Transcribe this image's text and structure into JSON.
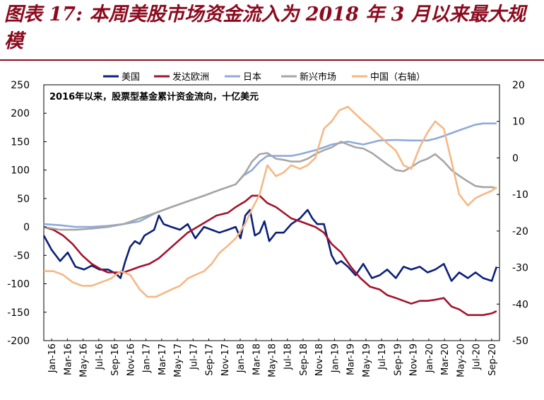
{
  "figure": {
    "title": "图表 17:  本周美股市场资金流入为 2018 年 3 月以来最大规模"
  },
  "chart_data": {
    "type": "line",
    "annotation": "2016年以来，股票型基金累计资金流向，十亿美元",
    "y_left": {
      "min": -200,
      "max": 250,
      "ticks": [
        250,
        200,
        150,
        100,
        50,
        0,
        -50,
        -100,
        -150,
        -200
      ]
    },
    "y_right": {
      "min": -50,
      "max": 20,
      "ticks": [
        20,
        10,
        0,
        -10,
        -20,
        -30,
        -40,
        -50
      ]
    },
    "x_range": [
      2016.0,
      2020.75
    ],
    "x_tick_labels": [
      "Jan-16",
      "Mar-16",
      "May-16",
      "Jul-16",
      "Sep-16",
      "Nov-16",
      "Jan-17",
      "Mar-17",
      "May-17",
      "Jul-17",
      "Sep-17",
      "Nov-17",
      "Jan-18",
      "Mar-18",
      "May-18",
      "Jul-18",
      "Sep-18",
      "Nov-18",
      "Jan-19",
      "Mar-19",
      "May-19",
      "Jul-19",
      "Sep-19",
      "Nov-19",
      "Jan-20",
      "Mar-20",
      "May-20",
      "Jul-20",
      "Sep-20"
    ],
    "series": [
      {
        "name": "美国",
        "color": "#0B1F7A",
        "axis": "left",
        "points": [
          [
            2016.0,
            -15
          ],
          [
            2016.08,
            -40
          ],
          [
            2016.17,
            -60
          ],
          [
            2016.25,
            -45
          ],
          [
            2016.33,
            -70
          ],
          [
            2016.42,
            -75
          ],
          [
            2016.5,
            -68
          ],
          [
            2016.58,
            -75
          ],
          [
            2016.67,
            -75
          ],
          [
            2016.75,
            -82
          ],
          [
            2016.8,
            -90
          ],
          [
            2016.85,
            -60
          ],
          [
            2016.9,
            -35
          ],
          [
            2016.95,
            -25
          ],
          [
            2017.0,
            -30
          ],
          [
            2017.05,
            -15
          ],
          [
            2017.1,
            -10
          ],
          [
            2017.15,
            -5
          ],
          [
            2017.2,
            20
          ],
          [
            2017.25,
            5
          ],
          [
            2017.33,
            0
          ],
          [
            2017.42,
            -5
          ],
          [
            2017.5,
            5
          ],
          [
            2017.58,
            -20
          ],
          [
            2017.67,
            0
          ],
          [
            2017.75,
            -5
          ],
          [
            2017.83,
            -10
          ],
          [
            2017.92,
            -5
          ],
          [
            2018.0,
            0
          ],
          [
            2018.05,
            -20
          ],
          [
            2018.1,
            20
          ],
          [
            2018.15,
            30
          ],
          [
            2018.2,
            -15
          ],
          [
            2018.25,
            -10
          ],
          [
            2018.3,
            10
          ],
          [
            2018.35,
            -25
          ],
          [
            2018.42,
            -10
          ],
          [
            2018.5,
            -10
          ],
          [
            2018.58,
            5
          ],
          [
            2018.67,
            15
          ],
          [
            2018.75,
            30
          ],
          [
            2018.8,
            15
          ],
          [
            2018.85,
            5
          ],
          [
            2018.92,
            5
          ],
          [
            2019.0,
            -50
          ],
          [
            2019.05,
            -65
          ],
          [
            2019.1,
            -60
          ],
          [
            2019.17,
            -70
          ],
          [
            2019.25,
            -85
          ],
          [
            2019.33,
            -65
          ],
          [
            2019.42,
            -90
          ],
          [
            2019.5,
            -85
          ],
          [
            2019.58,
            -75
          ],
          [
            2019.67,
            -90
          ],
          [
            2019.75,
            -70
          ],
          [
            2019.83,
            -75
          ],
          [
            2019.92,
            -70
          ],
          [
            2020.0,
            -80
          ],
          [
            2020.08,
            -75
          ],
          [
            2020.17,
            -65
          ],
          [
            2020.25,
            -95
          ],
          [
            2020.33,
            -80
          ],
          [
            2020.42,
            -90
          ],
          [
            2020.5,
            -80
          ],
          [
            2020.58,
            -90
          ],
          [
            2020.67,
            -95
          ],
          [
            2020.72,
            -70
          ]
        ]
      },
      {
        "name": "发达欧洲",
        "color": "#A3122C",
        "axis": "left",
        "points": [
          [
            2016.0,
            0
          ],
          [
            2016.1,
            -5
          ],
          [
            2016.2,
            -15
          ],
          [
            2016.3,
            -30
          ],
          [
            2016.4,
            -50
          ],
          [
            2016.5,
            -65
          ],
          [
            2016.6,
            -75
          ],
          [
            2016.67,
            -80
          ],
          [
            2016.75,
            -80
          ],
          [
            2016.83,
            -80
          ],
          [
            2016.92,
            -75
          ],
          [
            2017.0,
            -70
          ],
          [
            2017.1,
            -65
          ],
          [
            2017.2,
            -55
          ],
          [
            2017.3,
            -40
          ],
          [
            2017.4,
            -25
          ],
          [
            2017.5,
            -10
          ],
          [
            2017.6,
            0
          ],
          [
            2017.7,
            10
          ],
          [
            2017.8,
            20
          ],
          [
            2017.92,
            25
          ],
          [
            2018.0,
            35
          ],
          [
            2018.1,
            45
          ],
          [
            2018.17,
            55
          ],
          [
            2018.25,
            55
          ],
          [
            2018.33,
            42
          ],
          [
            2018.42,
            35
          ],
          [
            2018.5,
            25
          ],
          [
            2018.58,
            15
          ],
          [
            2018.67,
            10
          ],
          [
            2018.75,
            5
          ],
          [
            2018.83,
            0
          ],
          [
            2018.92,
            -10
          ],
          [
            2019.0,
            -30
          ],
          [
            2019.1,
            -45
          ],
          [
            2019.2,
            -70
          ],
          [
            2019.3,
            -90
          ],
          [
            2019.4,
            -105
          ],
          [
            2019.5,
            -110
          ],
          [
            2019.58,
            -120
          ],
          [
            2019.67,
            -125
          ],
          [
            2019.75,
            -130
          ],
          [
            2019.83,
            -135
          ],
          [
            2019.92,
            -130
          ],
          [
            2020.0,
            -130
          ],
          [
            2020.08,
            -128
          ],
          [
            2020.17,
            -125
          ],
          [
            2020.25,
            -140
          ],
          [
            2020.33,
            -145
          ],
          [
            2020.42,
            -155
          ],
          [
            2020.5,
            -155
          ],
          [
            2020.58,
            -155
          ],
          [
            2020.67,
            -152
          ],
          [
            2020.72,
            -148
          ]
        ]
      },
      {
        "name": "日本",
        "color": "#8EAADB",
        "axis": "left",
        "points": [
          [
            2016.0,
            5
          ],
          [
            2016.17,
            3
          ],
          [
            2016.33,
            0
          ],
          [
            2016.5,
            0
          ],
          [
            2016.67,
            2
          ],
          [
            2016.83,
            5
          ],
          [
            2017.0,
            10
          ],
          [
            2017.17,
            25
          ],
          [
            2017.33,
            35
          ],
          [
            2017.5,
            45
          ],
          [
            2017.67,
            55
          ],
          [
            2017.83,
            65
          ],
          [
            2018.0,
            75
          ],
          [
            2018.08,
            90
          ],
          [
            2018.17,
            100
          ],
          [
            2018.25,
            115
          ],
          [
            2018.33,
            125
          ],
          [
            2018.42,
            125
          ],
          [
            2018.5,
            125
          ],
          [
            2018.58,
            125
          ],
          [
            2018.67,
            128
          ],
          [
            2018.83,
            135
          ],
          [
            2018.92,
            140
          ],
          [
            2019.0,
            145
          ],
          [
            2019.17,
            150
          ],
          [
            2019.33,
            145
          ],
          [
            2019.5,
            152
          ],
          [
            2019.67,
            153
          ],
          [
            2019.83,
            152
          ],
          [
            2020.0,
            152
          ],
          [
            2020.08,
            155
          ],
          [
            2020.17,
            160
          ],
          [
            2020.25,
            165
          ],
          [
            2020.33,
            170
          ],
          [
            2020.5,
            180
          ],
          [
            2020.58,
            182
          ],
          [
            2020.72,
            182
          ]
        ]
      },
      {
        "name": "新兴市场",
        "color": "#A6A6A6",
        "axis": "left",
        "points": [
          [
            2016.0,
            0
          ],
          [
            2016.17,
            -5
          ],
          [
            2016.33,
            -5
          ],
          [
            2016.5,
            -3
          ],
          [
            2016.67,
            0
          ],
          [
            2016.83,
            5
          ],
          [
            2017.0,
            15
          ],
          [
            2017.17,
            25
          ],
          [
            2017.33,
            35
          ],
          [
            2017.5,
            45
          ],
          [
            2017.67,
            55
          ],
          [
            2017.83,
            65
          ],
          [
            2018.0,
            75
          ],
          [
            2018.1,
            95
          ],
          [
            2018.17,
            115
          ],
          [
            2018.25,
            128
          ],
          [
            2018.33,
            130
          ],
          [
            2018.42,
            120
          ],
          [
            2018.5,
            118
          ],
          [
            2018.58,
            115
          ],
          [
            2018.67,
            115
          ],
          [
            2018.75,
            120
          ],
          [
            2018.83,
            128
          ],
          [
            2018.92,
            135
          ],
          [
            2019.0,
            140
          ],
          [
            2019.1,
            150
          ],
          [
            2019.17,
            145
          ],
          [
            2019.25,
            140
          ],
          [
            2019.33,
            138
          ],
          [
            2019.42,
            130
          ],
          [
            2019.5,
            120
          ],
          [
            2019.58,
            110
          ],
          [
            2019.67,
            100
          ],
          [
            2019.75,
            98
          ],
          [
            2019.83,
            105
          ],
          [
            2019.92,
            115
          ],
          [
            2020.0,
            120
          ],
          [
            2020.08,
            128
          ],
          [
            2020.17,
            115
          ],
          [
            2020.25,
            100
          ],
          [
            2020.33,
            90
          ],
          [
            2020.42,
            80
          ],
          [
            2020.5,
            72
          ],
          [
            2020.58,
            70
          ],
          [
            2020.67,
            70
          ],
          [
            2020.72,
            68
          ]
        ]
      },
      {
        "name": "中国（右轴）",
        "color": "#F5B885",
        "axis": "right",
        "points": [
          [
            2016.0,
            -31
          ],
          [
            2016.1,
            -31
          ],
          [
            2016.2,
            -32
          ],
          [
            2016.3,
            -34
          ],
          [
            2016.4,
            -35
          ],
          [
            2016.5,
            -35
          ],
          [
            2016.6,
            -34
          ],
          [
            2016.7,
            -33
          ],
          [
            2016.8,
            -31
          ],
          [
            2016.9,
            -32
          ],
          [
            2017.0,
            -36
          ],
          [
            2017.08,
            -38
          ],
          [
            2017.17,
            -38
          ],
          [
            2017.25,
            -37
          ],
          [
            2017.33,
            -36
          ],
          [
            2017.42,
            -35
          ],
          [
            2017.5,
            -33
          ],
          [
            2017.58,
            -32
          ],
          [
            2017.67,
            -31
          ],
          [
            2017.75,
            -29
          ],
          [
            2017.83,
            -26
          ],
          [
            2017.92,
            -24
          ],
          [
            2018.0,
            -22
          ],
          [
            2018.05,
            -20
          ],
          [
            2018.1,
            -18
          ],
          [
            2018.17,
            -14
          ],
          [
            2018.25,
            -10
          ],
          [
            2018.33,
            -2
          ],
          [
            2018.42,
            -5
          ],
          [
            2018.5,
            -4
          ],
          [
            2018.58,
            -2
          ],
          [
            2018.67,
            -3
          ],
          [
            2018.75,
            -2
          ],
          [
            2018.83,
            0
          ],
          [
            2018.92,
            8
          ],
          [
            2019.0,
            10
          ],
          [
            2019.08,
            13
          ],
          [
            2019.17,
            14
          ],
          [
            2019.25,
            12
          ],
          [
            2019.33,
            10
          ],
          [
            2019.42,
            8
          ],
          [
            2019.5,
            6
          ],
          [
            2019.58,
            4
          ],
          [
            2019.67,
            2
          ],
          [
            2019.75,
            -2
          ],
          [
            2019.83,
            -3
          ],
          [
            2019.92,
            3
          ],
          [
            2020.0,
            7
          ],
          [
            2020.08,
            10
          ],
          [
            2020.17,
            8
          ],
          [
            2020.25,
            -1
          ],
          [
            2020.33,
            -10
          ],
          [
            2020.42,
            -13
          ],
          [
            2020.5,
            -11
          ],
          [
            2020.58,
            -10
          ],
          [
            2020.67,
            -9
          ],
          [
            2020.72,
            -8
          ]
        ]
      }
    ]
  }
}
